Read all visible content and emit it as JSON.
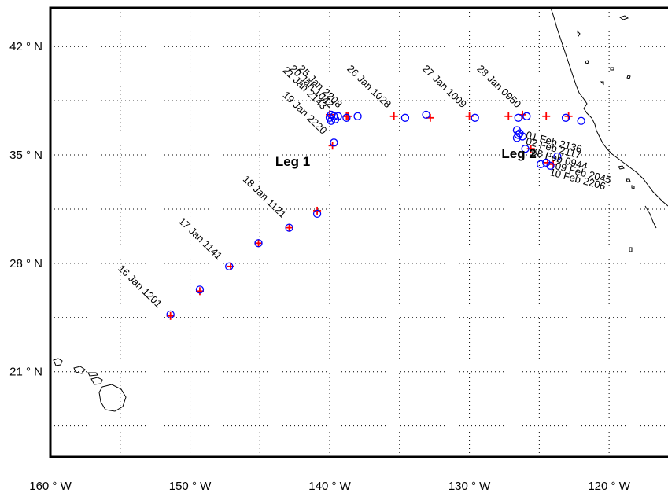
{
  "map": {
    "lon_ticks": [
      {
        "value": -160,
        "label": "160 ° W"
      },
      {
        "value": -150,
        "label": "150 ° W"
      },
      {
        "value": -140,
        "label": "140 ° W"
      },
      {
        "value": -130,
        "label": "130 ° W"
      },
      {
        "value": -120,
        "label": "120 ° W"
      }
    ],
    "lat_ticks": [
      {
        "value": 42,
        "label": "42 ° N"
      },
      {
        "value": 35,
        "label": "35 ° N"
      },
      {
        "value": 28,
        "label": "28 ° N"
      },
      {
        "value": 21,
        "label": "21 ° N"
      }
    ],
    "grid": true,
    "lon_grid": [
      -155,
      -150,
      -145,
      -140,
      -135,
      -130,
      -125,
      -120
    ],
    "lat_grid": [
      17.5,
      21,
      24.5,
      28,
      31.5,
      35,
      38.5,
      42
    ],
    "lon_range": [
      -160,
      -115.5
    ],
    "lat_range": [
      15.5,
      44.5
    ],
    "colors": {
      "observed": "#0000ff",
      "predicted": "#ff0000",
      "land": "#000000"
    }
  },
  "leg_labels": [
    {
      "text": "Leg 1",
      "lon": -143.9,
      "lat": 34.3
    },
    {
      "text": "Leg 2",
      "lon": -127.7,
      "lat": 34.8
    }
  ],
  "observed": [
    {
      "lon": -151.4,
      "lat": 24.7
    },
    {
      "lon": -149.3,
      "lat": 26.3
    },
    {
      "lon": -147.2,
      "lat": 27.8
    },
    {
      "lon": -145.1,
      "lat": 29.3
    },
    {
      "lon": -142.9,
      "lat": 30.3
    },
    {
      "lon": -140.9,
      "lat": 31.2
    },
    {
      "lon": -139.7,
      "lat": 35.8
    },
    {
      "lon": -139.6,
      "lat": 37.3
    },
    {
      "lon": -139.9,
      "lat": 37.2
    },
    {
      "lon": -140.0,
      "lat": 37.4
    },
    {
      "lon": -139.7,
      "lat": 37.5
    },
    {
      "lon": -139.9,
      "lat": 37.6
    },
    {
      "lon": -139.4,
      "lat": 37.5
    },
    {
      "lon": -138.8,
      "lat": 37.4
    },
    {
      "lon": -138.0,
      "lat": 37.5
    },
    {
      "lon": -134.6,
      "lat": 37.4
    },
    {
      "lon": -133.1,
      "lat": 37.6
    },
    {
      "lon": -129.6,
      "lat": 37.4
    },
    {
      "lon": -126.5,
      "lat": 37.4
    },
    {
      "lon": -125.9,
      "lat": 37.5
    },
    {
      "lon": -126.6,
      "lat": 36.6
    },
    {
      "lon": -126.5,
      "lat": 36.3
    },
    {
      "lon": -126.6,
      "lat": 36.1
    },
    {
      "lon": -126.4,
      "lat": 36.4
    },
    {
      "lon": -126.2,
      "lat": 36.2
    },
    {
      "lon": -126.0,
      "lat": 35.4
    },
    {
      "lon": -124.9,
      "lat": 34.4
    },
    {
      "lon": -124.5,
      "lat": 34.5
    },
    {
      "lon": -124.2,
      "lat": 34.3
    },
    {
      "lon": -123.7,
      "lat": 34.9
    },
    {
      "lon": -123.1,
      "lat": 37.4
    },
    {
      "lon": -122.0,
      "lat": 37.2
    }
  ],
  "predicted": [
    {
      "lon": -151.4,
      "lat": 24.6
    },
    {
      "lon": -149.3,
      "lat": 26.2
    },
    {
      "lon": -147.1,
      "lat": 27.8
    },
    {
      "lon": -145.1,
      "lat": 29.3
    },
    {
      "lon": -142.9,
      "lat": 30.3
    },
    {
      "lon": -140.9,
      "lat": 31.4
    },
    {
      "lon": -139.8,
      "lat": 35.6
    },
    {
      "lon": -140.0,
      "lat": 37.6
    },
    {
      "lon": -138.8,
      "lat": 37.5
    },
    {
      "lon": -138.7,
      "lat": 37.5
    },
    {
      "lon": -135.4,
      "lat": 37.5
    },
    {
      "lon": -132.8,
      "lat": 37.4
    },
    {
      "lon": -130.0,
      "lat": 37.5
    },
    {
      "lon": -127.2,
      "lat": 37.5
    },
    {
      "lon": -126.2,
      "lat": 37.6
    },
    {
      "lon": -124.5,
      "lat": 37.5
    },
    {
      "lon": -122.9,
      "lat": 37.5
    },
    {
      "lon": -125.6,
      "lat": 35.4
    },
    {
      "lon": -124.4,
      "lat": 34.5
    },
    {
      "lon": -124.0,
      "lat": 34.4
    }
  ],
  "annotations": [
    {
      "text": "16 Jan 1201",
      "lon": -152.3,
      "lat": 25.1,
      "angle": 44,
      "align": "end"
    },
    {
      "text": "17 Jan 1141",
      "lon": -148.0,
      "lat": 28.2,
      "angle": 44,
      "align": "end"
    },
    {
      "text": "18 Jan 1121",
      "lon": -143.4,
      "lat": 30.9,
      "angle": 44,
      "align": "end"
    },
    {
      "text": "19 Jan 2220",
      "lon": -140.5,
      "lat": 36.3,
      "angle": 44,
      "align": "end"
    },
    {
      "text": "21 Jan 2143",
      "lon": -140.5,
      "lat": 37.9,
      "angle": 44,
      "align": "end"
    },
    {
      "text": "20 Jan 1042",
      "lon": -140.0,
      "lat": 38.0,
      "angle": 44,
      "align": "end"
    },
    {
      "text": "25 Jan 2208",
      "lon": -139.4,
      "lat": 38.0,
      "angle": 44,
      "align": "end"
    },
    {
      "text": "26 Jan 1028",
      "lon": -135.9,
      "lat": 38.0,
      "angle": 44,
      "align": "end"
    },
    {
      "text": "27 Jan 1009",
      "lon": -130.5,
      "lat": 38.0,
      "angle": 44,
      "align": "end"
    },
    {
      "text": "28 Jan 0950",
      "lon": -126.6,
      "lat": 38.0,
      "angle": 44,
      "align": "end"
    },
    {
      "text": "01 Feb 2136",
      "lon": -126.0,
      "lat": 36.1,
      "angle": 15,
      "align": "start"
    },
    {
      "text": "02 Feb 2117",
      "lon": -126.0,
      "lat": 35.7,
      "angle": 15,
      "align": "start"
    },
    {
      "text": "08 Feb 0944",
      "lon": -125.6,
      "lat": 35.0,
      "angle": 15,
      "align": "start"
    },
    {
      "text": "09 Feb 2045",
      "lon": -123.9,
      "lat": 34.1,
      "angle": 15,
      "align": "start"
    },
    {
      "text": "10 Feb 2206",
      "lon": -124.3,
      "lat": 33.7,
      "angle": 15,
      "align": "start"
    }
  ]
}
